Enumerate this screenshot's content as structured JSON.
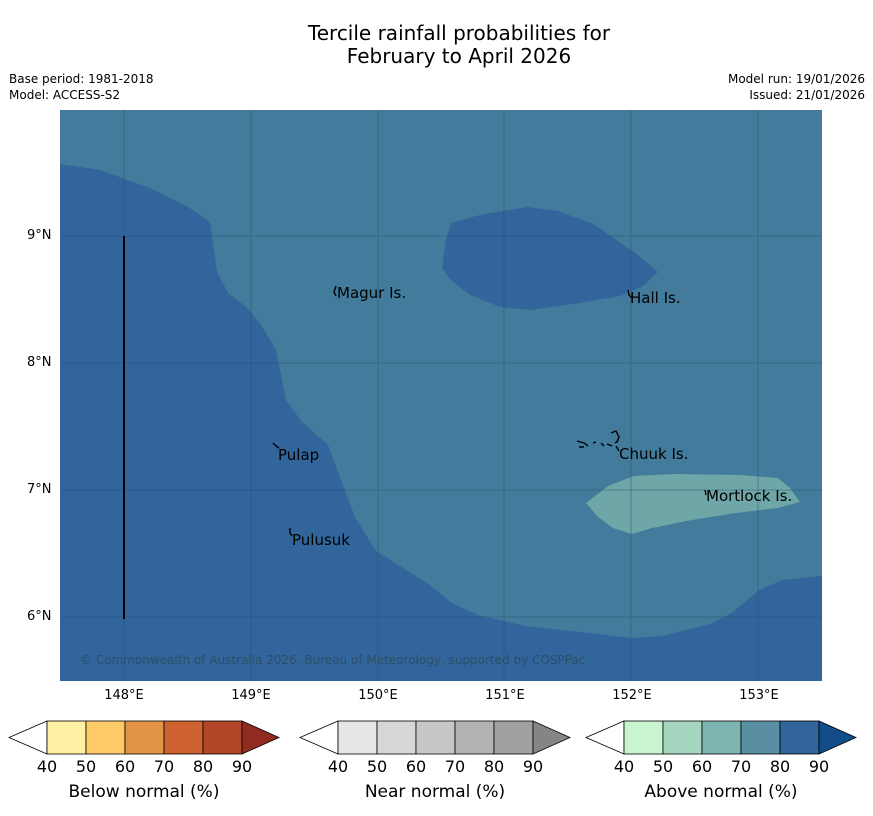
{
  "title_line1": "Tercile rainfall probabilities for",
  "title_line2": "February to April 2026",
  "base_period": "Base period: 1981-2018",
  "model": "Model: ACCESS-S2",
  "model_run": "Model run: 19/01/2026",
  "issued": "Issued: 21/01/2026",
  "map": {
    "places": [
      "Magur Is.",
      "Hall Is.",
      "Pulap",
      "Chuuk Is.",
      "Mortlock Is.",
      "Pulusuk"
    ],
    "latitude_labels": [
      "9°N",
      "8°N",
      "7°N",
      "6°N"
    ],
    "longitude_labels": [
      "148°E",
      "149°E",
      "150°E",
      "151°E",
      "152°E",
      "153°E"
    ],
    "copyright": "© Commonwealth of Australia 2026, Bureau of Meteorology, supported by COSPPac",
    "colors": {
      "background_70": "#427b9b",
      "above_80": "#31659b",
      "above_60": "#6fa6a8"
    }
  },
  "legend": {
    "ticks": [
      "40",
      "50",
      "60",
      "70",
      "80",
      "90"
    ],
    "below": {
      "title": "Below normal (%)",
      "colors": [
        "#fff0a4",
        "#fdca67",
        "#e39447",
        "#cf6131",
        "#b24527",
        "#922b1f"
      ]
    },
    "near": {
      "title": "Near normal (%)",
      "colors": [
        "#e6e6e6",
        "#d7d7d7",
        "#c7c7c7",
        "#b3b3b3",
        "#a0a0a0",
        "#858585"
      ]
    },
    "above": {
      "title": "Above normal (%)",
      "colors": [
        "#c8f5d0",
        "#a5d6c0",
        "#7fb5b1",
        "#5a8fa3",
        "#31659b",
        "#124d89"
      ]
    }
  }
}
